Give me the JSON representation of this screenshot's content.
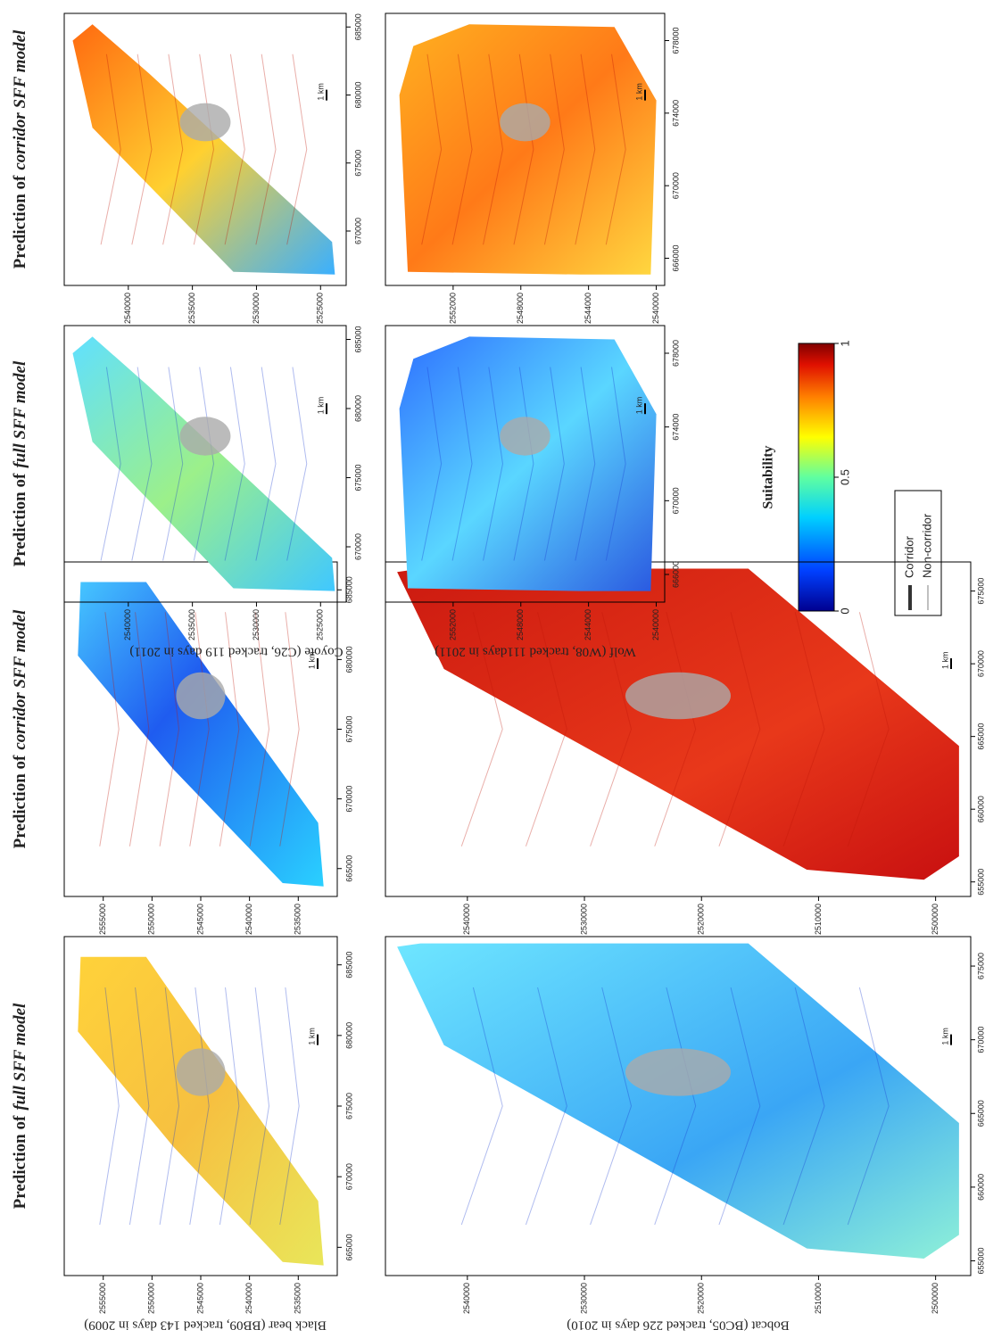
{
  "figure": {
    "colorbar": {
      "title": "Suitability",
      "lim": [
        0,
        1
      ],
      "ticks": [
        0,
        0.5,
        1
      ]
    },
    "legend": [
      "Corridor",
      "Non-corridor"
    ],
    "scale_bar_label": "1 km",
    "panels": [
      {
        "species": "Black bear (BB09,  tracked 143 days in 2009)",
        "maps": [
          {
            "title": {
              "lead": "Prediction of",
              "italic": "full SFF model"
            },
            "xlim": [
              663000,
              687000
            ],
            "ylim": [
              2531000,
              2559000
            ],
            "xticks": [
              665000,
              670000,
              675000,
              680000,
              685000
            ],
            "yticks": [
              2535000,
              2540000,
              2545000,
              2550000,
              2555000
            ]
          },
          {
            "title": {
              "lead": "Prediction of",
              "italic": "corridor SFF model"
            },
            "xlim": [
              663000,
              687000
            ],
            "ylim": [
              2531000,
              2559000
            ],
            "xticks": [
              665000,
              670000,
              675000,
              680000,
              685000
            ],
            "yticks": [
              2535000,
              2540000,
              2545000,
              2550000,
              2555000
            ]
          }
        ]
      },
      {
        "species": "Bobcat (BC05, tracked 226 days in 2010)",
        "maps": [
          {
            "xlim": [
              654000,
              677000
            ],
            "ylim": [
              2497000,
              2547000
            ],
            "xticks": [
              655000,
              660000,
              665000,
              670000,
              675000
            ],
            "yticks": [
              2500000,
              2510000,
              2520000,
              2530000,
              2540000
            ]
          },
          {
            "xlim": [
              654000,
              677000
            ],
            "ylim": [
              2497000,
              2547000
            ],
            "xticks": [
              655000,
              660000,
              665000,
              670000,
              675000
            ],
            "yticks": [
              2500000,
              2510000,
              2520000,
              2530000,
              2540000
            ]
          }
        ]
      },
      {
        "species": "Coyote (C26, tracked 119 days in 2011)",
        "maps": [
          {
            "title": {
              "lead": "Prediction of",
              "italic": "full SFF model"
            },
            "xlim": [
              666000,
              686000
            ],
            "ylim": [
              2523000,
              2545000
            ],
            "xticks": [
              670000,
              675000,
              680000,
              685000
            ],
            "yticks": [
              2525000,
              2530000,
              2535000,
              2540000
            ]
          },
          {
            "title": {
              "lead": "Prediction of",
              "italic": "corridor SFF model"
            },
            "xlim": [
              666000,
              686000
            ],
            "ylim": [
              2523000,
              2545000
            ],
            "xticks": [
              670000,
              675000,
              680000,
              685000
            ],
            "yticks": [
              2525000,
              2530000,
              2535000,
              2540000
            ]
          }
        ]
      },
      {
        "species": "Wolf (W08, tracked 111days in 2011)",
        "maps": [
          {
            "xlim": [
              664500,
              679500
            ],
            "ylim": [
              2539500,
              2556000
            ],
            "xticks": [
              666000,
              670000,
              674000,
              678000
            ],
            "yticks": [
              2540000,
              2544000,
              2548000,
              2552000
            ]
          },
          {
            "xlim": [
              664500,
              679500
            ],
            "ylim": [
              2539500,
              2556000
            ],
            "xticks": [
              666000,
              670000,
              674000,
              678000
            ],
            "yticks": [
              2540000,
              2544000,
              2548000,
              2552000
            ]
          }
        ]
      }
    ]
  }
}
